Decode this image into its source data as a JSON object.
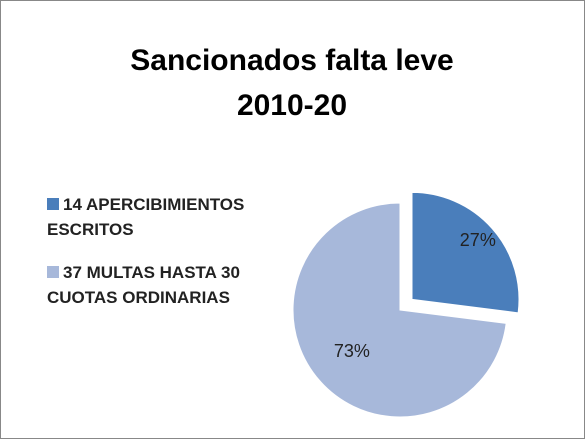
{
  "chart_data": {
    "type": "pie",
    "title": [
      "Sancionados falta leve",
      "2010-20"
    ],
    "categories": [
      "14 APERCIBIMIENTOS ESCRITOS",
      "37 MULTAS HASTA 30 CUOTAS ORDINARIAS"
    ],
    "values": [
      27,
      73
    ],
    "value_labels": [
      "27%",
      "73%"
    ],
    "colors": [
      "#4a7ebb",
      "#a7b8da"
    ],
    "exploded": [
      true,
      false
    ],
    "legend": "left"
  }
}
